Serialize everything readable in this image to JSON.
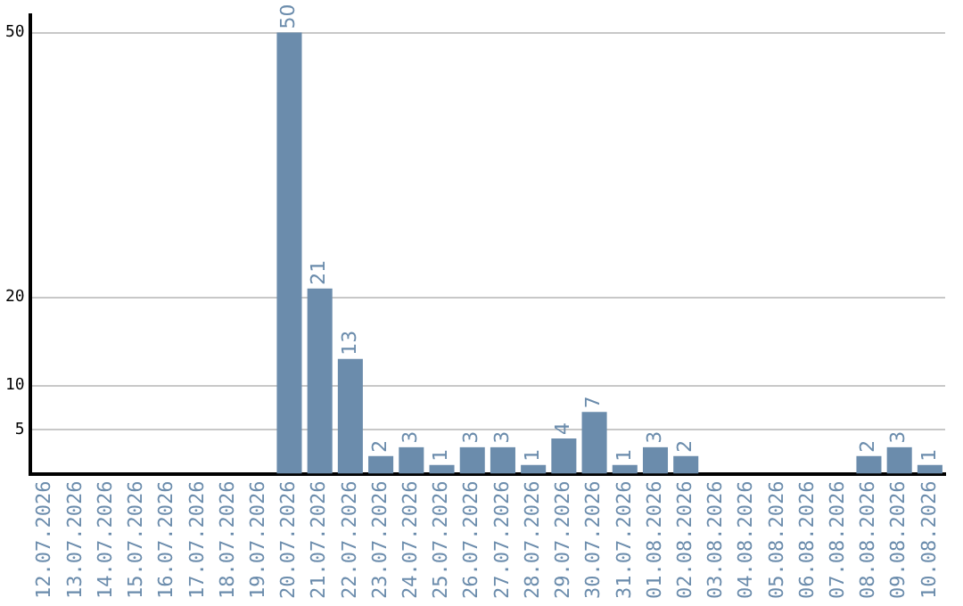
{
  "chart_data": {
    "type": "bar",
    "categories": [
      "12.07.2026",
      "13.07.2026",
      "14.07.2026",
      "15.07.2026",
      "16.07.2026",
      "17.07.2026",
      "18.07.2026",
      "19.07.2026",
      "20.07.2026",
      "21.07.2026",
      "22.07.2026",
      "23.07.2026",
      "24.07.2026",
      "25.07.2026",
      "26.07.2026",
      "27.07.2026",
      "28.07.2026",
      "29.07.2026",
      "30.07.2026",
      "31.07.2026",
      "01.08.2026",
      "02.08.2026",
      "03.08.2026",
      "04.08.2026",
      "05.08.2026",
      "06.08.2026",
      "07.08.2026",
      "08.08.2026",
      "09.08.2026",
      "10.08.2026"
    ],
    "values": [
      null,
      null,
      null,
      null,
      null,
      null,
      null,
      null,
      50,
      21,
      13,
      2,
      3,
      1,
      3,
      3,
      1,
      4,
      7,
      1,
      3,
      2,
      null,
      null,
      null,
      null,
      null,
      2,
      3,
      1
    ],
    "color": "#6b8cac",
    "ylim": [
      0,
      52
    ],
    "yticks": [
      5,
      10,
      20,
      50
    ],
    "grid": "y",
    "legend": false,
    "data_labels": true
  }
}
